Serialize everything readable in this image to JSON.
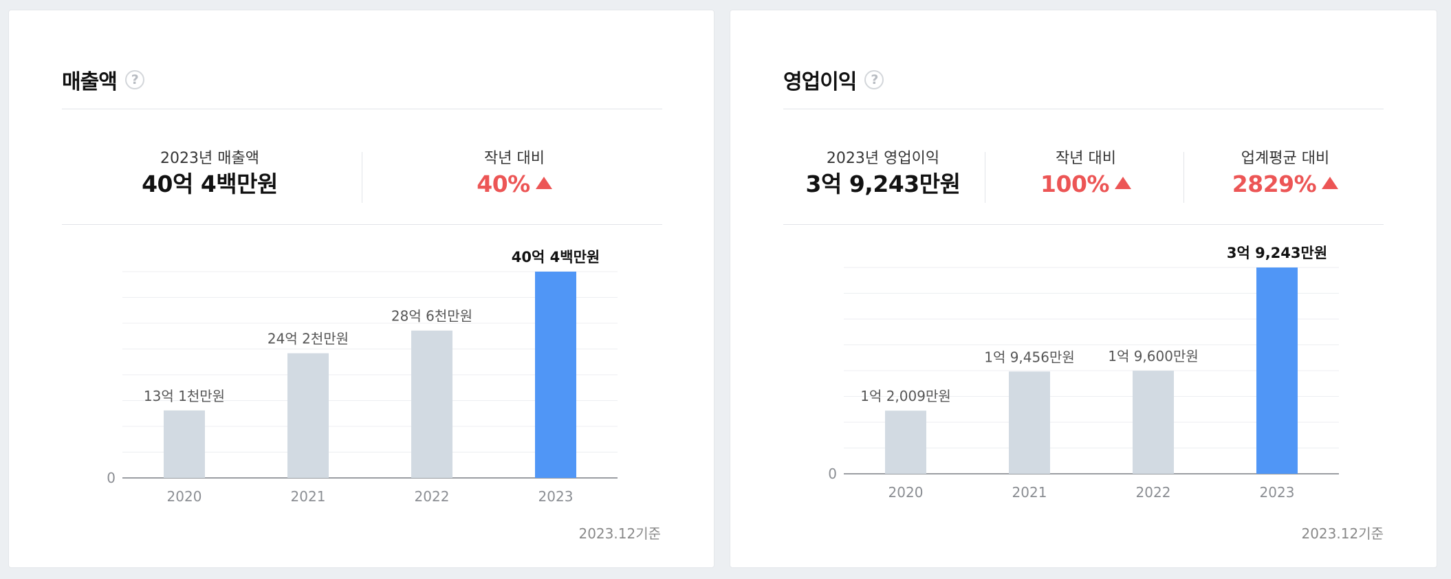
{
  "cards": [
    {
      "title": "매출액",
      "help_icon": "?",
      "stats": [
        {
          "label": "2023년 매출액",
          "value": "40억 4백만원",
          "up": false
        },
        {
          "label": "작년 대비",
          "value": "40%",
          "up": true
        }
      ],
      "footnote": "2023.12기준"
    },
    {
      "title": "영업이익",
      "help_icon": "?",
      "stats": [
        {
          "label": "2023년 영업이익",
          "value": "3억 9,243만원",
          "up": false
        },
        {
          "label": "작년 대비",
          "value": "100%",
          "up": true
        },
        {
          "label": "업계평균 대비",
          "value": "2829%",
          "up": true
        }
      ],
      "footnote": "2023.12기준"
    }
  ],
  "colors": {
    "bar": "#d2dae2",
    "bar_highlight": "#5096f6",
    "increase": "#ec5555",
    "grid": "#eceef1",
    "axis": "#9a9da2"
  },
  "chart_data": [
    {
      "type": "bar",
      "title": "매출액",
      "categories": [
        "2020",
        "2021",
        "2022",
        "2023"
      ],
      "values": [
        1310000000,
        2420000000,
        2860000000,
        4004000000
      ],
      "value_labels": [
        "13억 1천만원",
        "24억 2천만원",
        "28억 6천만원",
        "40억 4백만원"
      ],
      "highlight_index": 3,
      "y_zero_label": "0",
      "ylim": [
        0,
        4004000000
      ],
      "grid": true,
      "xlabel": "",
      "ylabel": ""
    },
    {
      "type": "bar",
      "title": "영업이익",
      "categories": [
        "2020",
        "2021",
        "2022",
        "2023"
      ],
      "values": [
        120090000,
        194560000,
        196000000,
        392430000
      ],
      "value_labels": [
        "1억 2,009만원",
        "1억 9,456만원",
        "1억 9,600만원",
        "3억 9,243만원"
      ],
      "highlight_index": 3,
      "y_zero_label": "0",
      "ylim": [
        0,
        392430000
      ],
      "grid": true,
      "xlabel": "",
      "ylabel": ""
    }
  ]
}
